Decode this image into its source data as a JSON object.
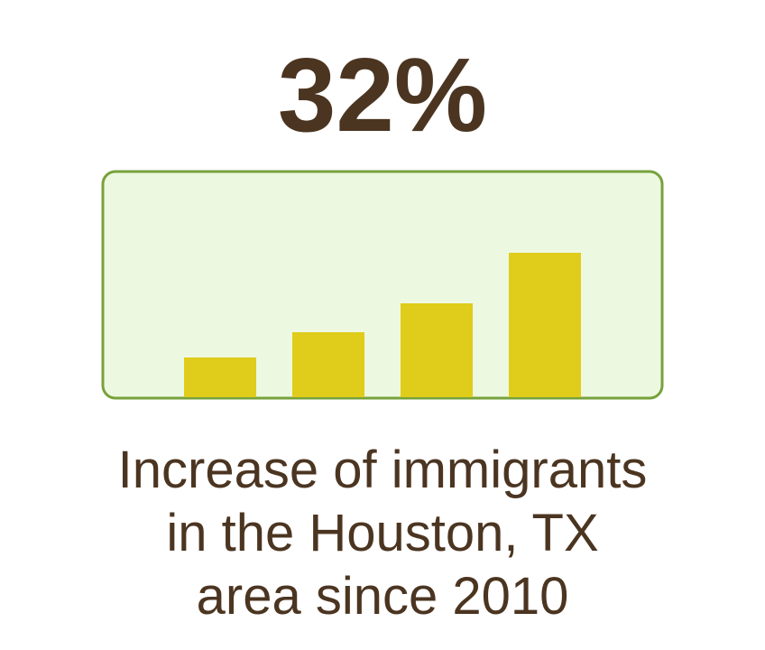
{
  "headline": "32%",
  "caption": {
    "lines": [
      "Increase of immigrants",
      "in the Houston, TX",
      "area since 2010"
    ]
  }
}
